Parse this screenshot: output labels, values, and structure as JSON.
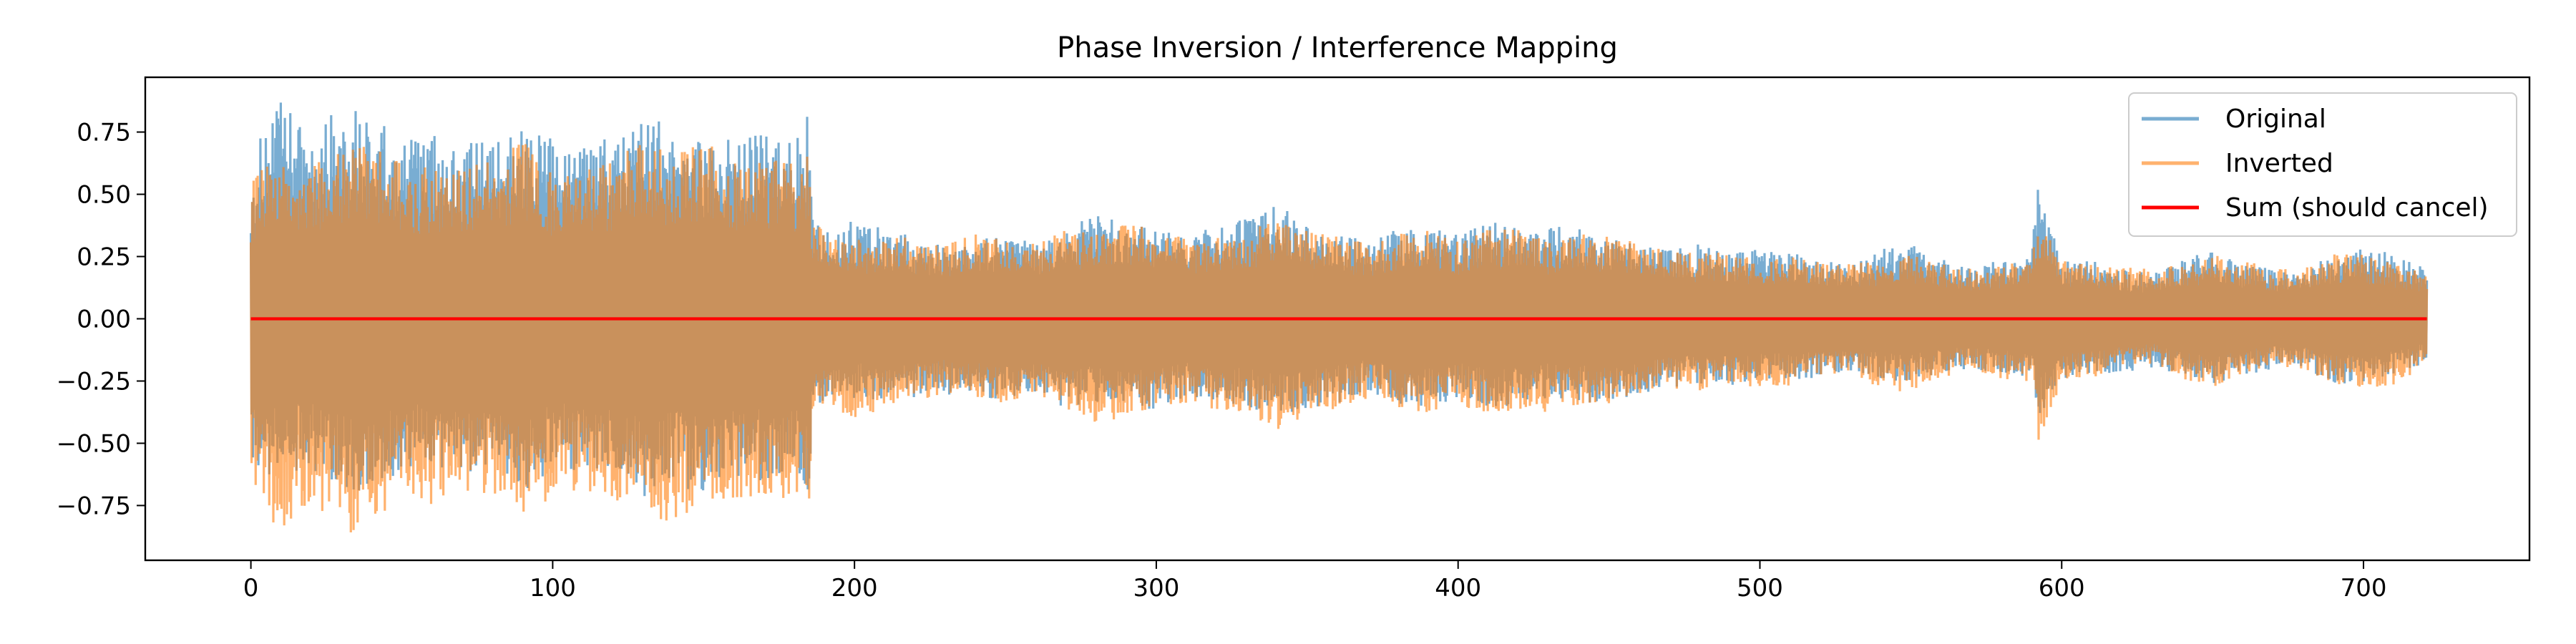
{
  "chart_data": {
    "type": "line",
    "title": "Phase Inversion / Interference Mapping",
    "xlabel": "",
    "ylabel": "",
    "xlim": [
      -35,
      755
    ],
    "ylim": [
      -0.97,
      0.97
    ],
    "x_ticks": [
      0,
      100,
      200,
      300,
      400,
      500,
      600,
      700
    ],
    "x_tick_labels": [
      "0",
      "100",
      "200",
      "300",
      "400",
      "500",
      "600",
      "700"
    ],
    "y_ticks": [
      0.75,
      0.5,
      0.25,
      0.0,
      -0.25,
      -0.5,
      -0.75
    ],
    "y_tick_labels": [
      "0.75",
      "0.50",
      "0.25",
      "0.00",
      "−0.25",
      "−0.50",
      "−0.75"
    ],
    "grid": false,
    "legend_position": "upper right",
    "x_range": [
      0,
      721
    ],
    "series": [
      {
        "name": "Original",
        "color": "#1f77b4",
        "alpha": 0.6,
        "envelope": {
          "x": [
            0,
            5,
            10,
            20,
            30,
            40,
            50,
            60,
            70,
            80,
            90,
            100,
            110,
            120,
            130,
            140,
            150,
            160,
            170,
            180,
            185,
            186,
            190,
            200,
            210,
            220,
            230,
            240,
            250,
            260,
            270,
            280,
            290,
            300,
            310,
            320,
            330,
            340,
            350,
            360,
            370,
            380,
            390,
            400,
            410,
            420,
            430,
            440,
            450,
            460,
            470,
            480,
            490,
            500,
            510,
            520,
            530,
            540,
            550,
            560,
            570,
            580,
            590,
            592,
            600,
            610,
            620,
            630,
            640,
            650,
            660,
            670,
            680,
            690,
            700,
            710,
            721
          ],
          "upper": [
            0.62,
            0.8,
            0.88,
            0.75,
            0.88,
            0.82,
            0.72,
            0.75,
            0.7,
            0.72,
            0.78,
            0.72,
            0.7,
            0.74,
            0.8,
            0.82,
            0.74,
            0.72,
            0.76,
            0.7,
            0.88,
            0.4,
            0.36,
            0.4,
            0.36,
            0.33,
            0.3,
            0.32,
            0.34,
            0.3,
            0.36,
            0.44,
            0.38,
            0.36,
            0.34,
            0.38,
            0.4,
            0.46,
            0.38,
            0.36,
            0.32,
            0.36,
            0.38,
            0.34,
            0.4,
            0.36,
            0.38,
            0.36,
            0.34,
            0.3,
            0.28,
            0.3,
            0.26,
            0.28,
            0.27,
            0.24,
            0.22,
            0.28,
            0.3,
            0.24,
            0.2,
            0.24,
            0.26,
            0.54,
            0.24,
            0.24,
            0.2,
            0.18,
            0.24,
            0.28,
            0.22,
            0.2,
            0.2,
            0.26,
            0.28,
            0.27,
            0.2
          ],
          "lower": [
            -0.55,
            -0.65,
            -0.62,
            -0.62,
            -0.68,
            -0.7,
            -0.64,
            -0.6,
            -0.62,
            -0.64,
            -0.72,
            -0.6,
            -0.62,
            -0.64,
            -0.72,
            -0.66,
            -0.72,
            -0.64,
            -0.66,
            -0.62,
            -0.72,
            -0.38,
            -0.36,
            -0.32,
            -0.34,
            -0.32,
            -0.3,
            -0.34,
            -0.32,
            -0.3,
            -0.36,
            -0.34,
            -0.38,
            -0.36,
            -0.32,
            -0.34,
            -0.36,
            -0.4,
            -0.36,
            -0.34,
            -0.3,
            -0.34,
            -0.36,
            -0.32,
            -0.36,
            -0.36,
            -0.32,
            -0.34,
            -0.34,
            -0.3,
            -0.28,
            -0.26,
            -0.27,
            -0.24,
            -0.25,
            -0.24,
            -0.22,
            -0.24,
            -0.26,
            -0.22,
            -0.2,
            -0.22,
            -0.24,
            -0.42,
            -0.24,
            -0.22,
            -0.22,
            -0.2,
            -0.22,
            -0.26,
            -0.24,
            -0.2,
            -0.2,
            -0.26,
            -0.26,
            -0.22,
            -0.18
          ]
        }
      },
      {
        "name": "Inverted",
        "color": "#ff7f0e",
        "alpha": 0.6,
        "envelope": {
          "x": [
            0,
            5,
            10,
            20,
            30,
            40,
            50,
            60,
            70,
            80,
            90,
            100,
            110,
            120,
            130,
            140,
            150,
            160,
            170,
            180,
            185,
            186,
            190,
            200,
            210,
            220,
            230,
            240,
            250,
            260,
            270,
            280,
            290,
            300,
            310,
            320,
            330,
            340,
            350,
            360,
            370,
            380,
            390,
            400,
            410,
            420,
            430,
            440,
            450,
            460,
            470,
            480,
            490,
            500,
            510,
            520,
            530,
            540,
            550,
            560,
            570,
            580,
            590,
            592,
            600,
            610,
            620,
            630,
            640,
            650,
            660,
            670,
            680,
            690,
            700,
            710,
            721
          ],
          "upper": [
            0.55,
            0.65,
            0.62,
            0.62,
            0.68,
            0.7,
            0.64,
            0.6,
            0.62,
            0.64,
            0.72,
            0.6,
            0.62,
            0.64,
            0.72,
            0.66,
            0.72,
            0.64,
            0.66,
            0.62,
            0.72,
            0.38,
            0.36,
            0.32,
            0.34,
            0.32,
            0.3,
            0.34,
            0.32,
            0.3,
            0.36,
            0.34,
            0.38,
            0.36,
            0.32,
            0.34,
            0.36,
            0.4,
            0.36,
            0.34,
            0.3,
            0.34,
            0.36,
            0.32,
            0.36,
            0.36,
            0.32,
            0.34,
            0.34,
            0.3,
            0.28,
            0.26,
            0.27,
            0.24,
            0.25,
            0.24,
            0.22,
            0.24,
            0.26,
            0.22,
            0.2,
            0.22,
            0.24,
            0.42,
            0.24,
            0.22,
            0.22,
            0.2,
            0.22,
            0.26,
            0.24,
            0.2,
            0.2,
            0.26,
            0.26,
            0.22,
            0.18
          ],
          "lower": [
            -0.62,
            -0.8,
            -0.88,
            -0.75,
            -0.88,
            -0.82,
            -0.72,
            -0.75,
            -0.7,
            -0.72,
            -0.78,
            -0.72,
            -0.7,
            -0.74,
            -0.8,
            -0.82,
            -0.74,
            -0.72,
            -0.76,
            -0.7,
            -0.88,
            -0.4,
            -0.36,
            -0.4,
            -0.36,
            -0.33,
            -0.3,
            -0.32,
            -0.34,
            -0.3,
            -0.36,
            -0.44,
            -0.38,
            -0.36,
            -0.34,
            -0.38,
            -0.4,
            -0.46,
            -0.38,
            -0.36,
            -0.32,
            -0.36,
            -0.38,
            -0.34,
            -0.4,
            -0.36,
            -0.38,
            -0.36,
            -0.34,
            -0.3,
            -0.28,
            -0.3,
            -0.26,
            -0.28,
            -0.27,
            -0.24,
            -0.22,
            -0.28,
            -0.3,
            -0.24,
            -0.2,
            -0.24,
            -0.26,
            -0.54,
            -0.24,
            -0.24,
            -0.2,
            -0.18,
            -0.24,
            -0.28,
            -0.22,
            -0.2,
            -0.2,
            -0.26,
            -0.28,
            -0.27,
            -0.2
          ]
        }
      },
      {
        "name": "Sum (should cancel)",
        "color": "#ff0000",
        "alpha": 1.0,
        "x": [
          0,
          721
        ],
        "y": [
          0.0,
          0.0
        ]
      }
    ]
  }
}
